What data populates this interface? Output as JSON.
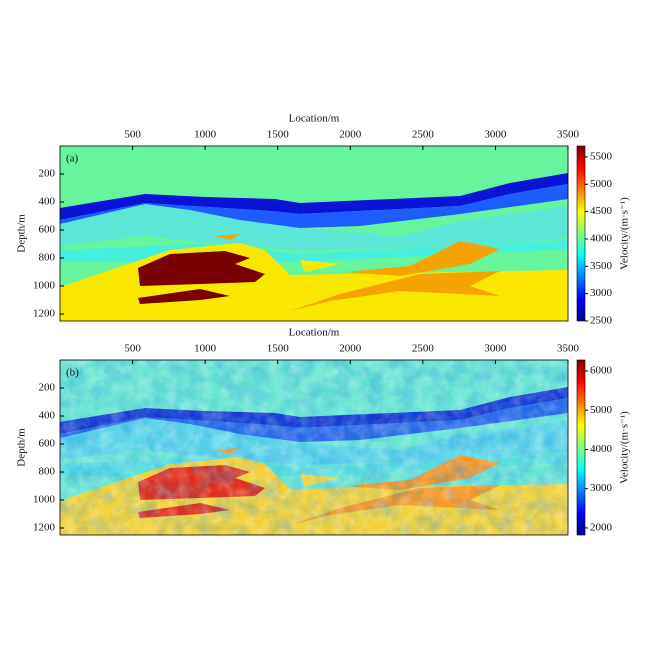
{
  "chart_data": [
    {
      "type": "velocity-model",
      "panel_label": "(a)",
      "x_label": "Location/m",
      "y_label": "Depth/m",
      "colorbar_label": "Velocity/(m·s⁻¹)",
      "colormap": "jet",
      "xlim": [
        0,
        3500
      ],
      "xticks": [
        500,
        1000,
        1500,
        2000,
        2500,
        3000,
        3500
      ],
      "ylim": [
        0,
        1250
      ],
      "y_inverted": true,
      "yticks": [
        200,
        400,
        600,
        800,
        1000,
        1200
      ],
      "clim": [
        2500,
        5700
      ],
      "cticks": [
        2500,
        3000,
        3500,
        4000,
        4500,
        5000,
        5500
      ],
      "noisy": false
    },
    {
      "type": "velocity-model",
      "panel_label": "(b)",
      "x_label": "Location/m",
      "y_label": "Depth/m",
      "colorbar_label": "Velocity/(m·s⁻¹)",
      "colormap": "jet",
      "xlim": [
        0,
        3500
      ],
      "xticks": [
        500,
        1000,
        1500,
        2000,
        2500,
        3000,
        3500
      ],
      "ylim": [
        0,
        1250
      ],
      "y_inverted": true,
      "yticks": [
        200,
        400,
        600,
        800,
        1000,
        1200
      ],
      "clim": [
        1820,
        6280
      ],
      "cticks": [
        2000,
        3000,
        4000,
        5000,
        6000
      ],
      "noisy": true
    }
  ]
}
